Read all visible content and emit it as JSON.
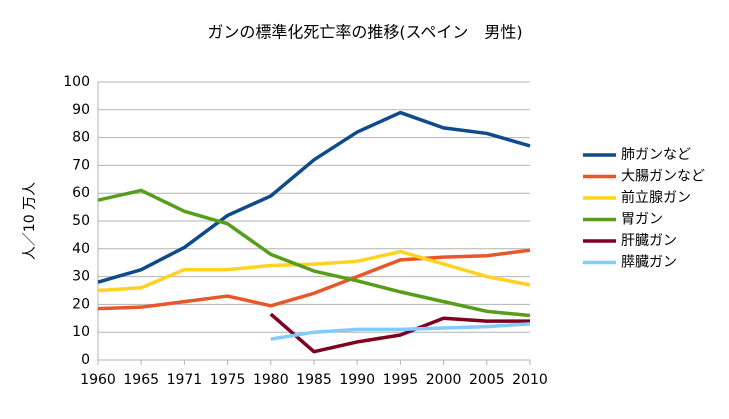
{
  "chart_data": {
    "type": "line",
    "title": "ガンの標準化死亡率の推移(スペイン　男性)",
    "y_label": "人／10 万人",
    "categories": [
      "1960",
      "1965",
      "1971",
      "1975",
      "1980",
      "1985",
      "1990",
      "1995",
      "2000",
      "2005",
      "2010"
    ],
    "series": [
      {
        "name": "肺ガンなど",
        "color": "#0f4a8a",
        "values": [
          28,
          32.5,
          40.5,
          52,
          59,
          72,
          82,
          89,
          83.5,
          81.5,
          77
        ]
      },
      {
        "name": "大腸ガンなど",
        "color": "#e8572a",
        "values": [
          18.5,
          19,
          21,
          23,
          19.5,
          24,
          30,
          36,
          37,
          37.5,
          39.5
        ]
      },
      {
        "name": "前立腺ガン",
        "color": "#ffd320",
        "values": [
          25,
          26,
          32.5,
          32.5,
          34,
          34.5,
          35.5,
          39,
          34.5,
          30,
          27
        ]
      },
      {
        "name": "胃ガン",
        "color": "#579d1c",
        "values": [
          57.5,
          61,
          53.5,
          49,
          38,
          32,
          28.5,
          24.5,
          21,
          17.5,
          16
        ]
      },
      {
        "name": "肝臓ガン",
        "color": "#7e0021",
        "values": [
          null,
          null,
          null,
          null,
          16.5,
          3,
          6.5,
          9,
          15,
          14,
          14
        ]
      },
      {
        "name": "膵臓ガン",
        "color": "#83caff",
        "values": [
          null,
          null,
          null,
          null,
          7.5,
          10,
          11,
          11,
          11.5,
          12,
          13
        ]
      }
    ],
    "ylim": [
      0,
      100
    ],
    "yticks": [
      0,
      10,
      20,
      30,
      40,
      50,
      60,
      70,
      80,
      90,
      100
    ],
    "grid": true,
    "legend": "right"
  }
}
